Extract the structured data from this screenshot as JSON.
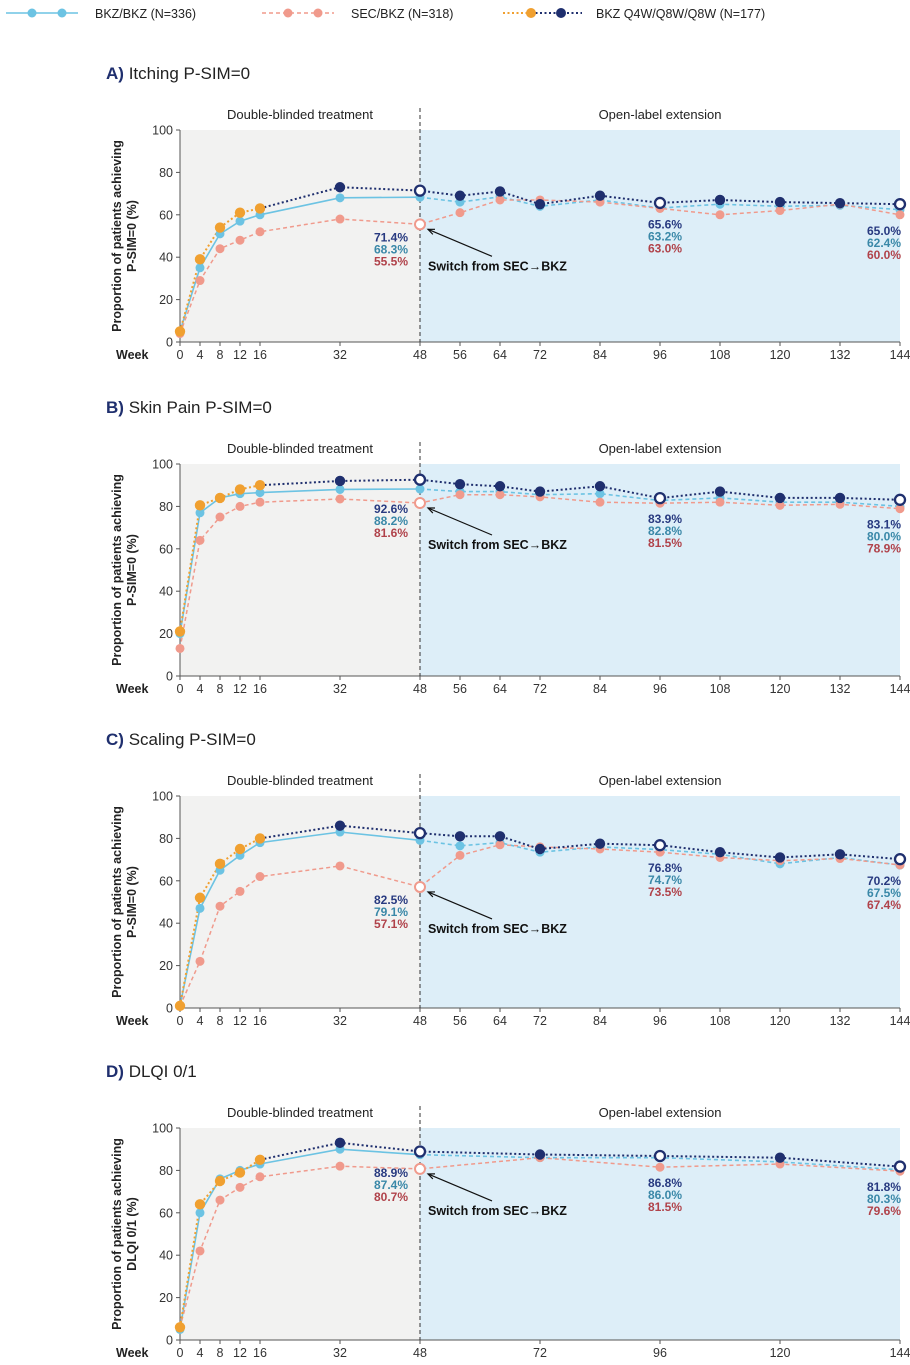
{
  "colors": {
    "bkz_bkz": "#6cc3e3",
    "sec_bkz": "#f09a8c",
    "bkz_q4w_dot": "#f0a030",
    "bkz_q4w_line": "#1f2f6e",
    "label_navy": "#283a80",
    "label_teal": "#3a88a8",
    "label_red": "#b0424a",
    "double_blind_bg": "#f2f2f1",
    "open_label_bg": "#ddeef8"
  },
  "legend": {
    "bkz_bkz": "BKZ/BKZ (N=336)",
    "sec_bkz": "SEC/BKZ (N=318)",
    "bkz_q4w": "BKZ Q4W/Q8W/Q8W (N=177)"
  },
  "common": {
    "phase_left": "Double-blinded treatment",
    "phase_right": "Open-label extension",
    "switch_note": "Switch from SEC→BKZ",
    "week_label": "Week"
  },
  "chart_data": [
    {
      "type": "line",
      "letter": "A)",
      "title": "Itching P-SIM=0",
      "ylabel_1": "Proportion of patients achieving",
      "ylabel_2": "P-SIM=0 (%)",
      "ylim": [
        0,
        100
      ],
      "yticks": [
        0,
        20,
        40,
        60,
        80,
        100
      ],
      "xticks": [
        0,
        4,
        8,
        12,
        16,
        32,
        48,
        56,
        64,
        72,
        84,
        96,
        108,
        120,
        132,
        144
      ],
      "series": [
        {
          "name": "BKZ/BKZ (N=336)",
          "x": [
            0,
            4,
            8,
            12,
            16,
            32,
            48,
            56,
            64,
            72,
            84,
            96,
            108,
            120,
            132,
            144
          ],
          "values": [
            5,
            35,
            51,
            57,
            60,
            68,
            68.3,
            66,
            68.5,
            64,
            67,
            63.2,
            65,
            64,
            64.5,
            62.4
          ]
        },
        {
          "name": "SEC/BKZ (N=318)",
          "x": [
            0,
            4,
            8,
            12,
            16,
            32,
            48,
            56,
            64,
            72,
            84,
            96,
            108,
            120,
            132,
            144
          ],
          "values": [
            4,
            29,
            44,
            48,
            52,
            58,
            55.5,
            61,
            67,
            67,
            66,
            63,
            60,
            62,
            65,
            60
          ]
        },
        {
          "name": "BKZ Q4W/Q8W/Q8W (N=177)",
          "x": [
            0,
            4,
            8,
            12,
            16,
            32,
            48,
            56,
            64,
            72,
            84,
            96,
            108,
            120,
            132,
            144
          ],
          "values": [
            5,
            39,
            54,
            61,
            63,
            73,
            71.4,
            69,
            71,
            65,
            69,
            65.6,
            67,
            66,
            65.5,
            65
          ]
        }
      ],
      "annotations": [
        {
          "x": 48,
          "values": [
            "71.4%",
            "68.3%",
            "55.5%"
          ]
        },
        {
          "x": 96,
          "values": [
            "65.6%",
            "63.2%",
            "63.0%"
          ]
        },
        {
          "x": 144,
          "values": [
            "65.0%",
            "62.4%",
            "60.0%"
          ]
        }
      ]
    },
    {
      "type": "line",
      "letter": "B)",
      "title": "Skin Pain P-SIM=0",
      "ylabel_1": "Proportion of patients achieving",
      "ylabel_2": "P-SIM=0 (%)",
      "ylim": [
        0,
        100
      ],
      "yticks": [
        0,
        20,
        40,
        60,
        80,
        100
      ],
      "xticks": [
        0,
        4,
        8,
        12,
        16,
        32,
        48,
        56,
        64,
        72,
        84,
        96,
        108,
        120,
        132,
        144
      ],
      "series": [
        {
          "name": "BKZ/BKZ (N=336)",
          "x": [
            0,
            4,
            8,
            12,
            16,
            32,
            48,
            56,
            64,
            72,
            84,
            96,
            108,
            120,
            132,
            144
          ],
          "values": [
            20,
            77,
            84,
            86,
            86.5,
            88,
            88.2,
            87,
            87,
            85.5,
            86,
            82.8,
            84,
            82,
            82,
            80
          ]
        },
        {
          "name": "SEC/BKZ (N=318)",
          "x": [
            0,
            4,
            8,
            12,
            16,
            32,
            48,
            56,
            64,
            72,
            84,
            96,
            108,
            120,
            132,
            144
          ],
          "values": [
            13,
            64,
            75,
            80,
            82,
            83.5,
            81.6,
            85.5,
            85.5,
            84.5,
            82,
            81.5,
            82,
            80.5,
            81,
            78.9
          ]
        },
        {
          "name": "BKZ Q4W/Q8W/Q8W (N=177)",
          "x": [
            0,
            4,
            8,
            12,
            16,
            32,
            48,
            56,
            64,
            72,
            84,
            96,
            108,
            120,
            132,
            144
          ],
          "values": [
            21,
            80.5,
            84,
            88,
            90,
            92,
            92.6,
            90.5,
            89.5,
            87,
            89.5,
            83.9,
            87,
            84,
            84,
            83.1
          ]
        }
      ],
      "annotations": [
        {
          "x": 48,
          "values": [
            "92.6%",
            "88.2%",
            "81.6%"
          ]
        },
        {
          "x": 96,
          "values": [
            "83.9%",
            "82.8%",
            "81.5%"
          ]
        },
        {
          "x": 144,
          "values": [
            "83.1%",
            "80.0%",
            "78.9%"
          ]
        }
      ]
    },
    {
      "type": "line",
      "letter": "C)",
      "title": "Scaling P-SIM=0",
      "ylabel_1": "Proportion of patients achieving",
      "ylabel_2": "P-SIM=0 (%)",
      "ylim": [
        0,
        100
      ],
      "yticks": [
        0,
        20,
        40,
        60,
        80,
        100
      ],
      "xticks": [
        0,
        4,
        8,
        12,
        16,
        32,
        48,
        56,
        64,
        72,
        84,
        96,
        108,
        120,
        132,
        144
      ],
      "series": [
        {
          "name": "BKZ/BKZ (N=336)",
          "x": [
            0,
            4,
            8,
            12,
            16,
            32,
            48,
            56,
            64,
            72,
            84,
            96,
            108,
            120,
            132,
            144
          ],
          "values": [
            1,
            47,
            65,
            72,
            78,
            83,
            79.1,
            76.5,
            78,
            73.5,
            76,
            74.7,
            72.5,
            68,
            71,
            67.4
          ]
        },
        {
          "name": "SEC/BKZ (N=318)",
          "x": [
            0,
            4,
            8,
            12,
            16,
            32,
            48,
            56,
            64,
            72,
            84,
            96,
            108,
            120,
            132,
            144
          ],
          "values": [
            1,
            22,
            48,
            55,
            62,
            67,
            57.1,
            72,
            77,
            76,
            75,
            73.5,
            71,
            69.5,
            70.5,
            67.5
          ]
        },
        {
          "name": "BKZ Q4W/Q8W/Q8W (N=177)",
          "x": [
            0,
            4,
            8,
            12,
            16,
            32,
            48,
            56,
            64,
            72,
            84,
            96,
            108,
            120,
            132,
            144
          ],
          "values": [
            1,
            52,
            68,
            75,
            80,
            86,
            82.5,
            81,
            81,
            75,
            77.5,
            76.8,
            73.5,
            71,
            72.5,
            70.2
          ]
        }
      ],
      "annotations": [
        {
          "x": 48,
          "values": [
            "82.5%",
            "79.1%",
            "57.1%"
          ]
        },
        {
          "x": 96,
          "values": [
            "76.8%",
            "74.7%",
            "73.5%"
          ]
        },
        {
          "x": 144,
          "values": [
            "70.2%",
            "67.5%",
            "67.4%"
          ]
        }
      ]
    },
    {
      "type": "line",
      "letter": "D)",
      "title": "DLQI 0/1",
      "ylabel_1": "Proportion of patients achieving",
      "ylabel_2": "DLQI 0/1 (%)",
      "ylim": [
        0,
        100
      ],
      "yticks": [
        0,
        20,
        40,
        60,
        80,
        100
      ],
      "xticks": [
        0,
        4,
        8,
        12,
        16,
        32,
        48,
        72,
        96,
        120,
        144
      ],
      "series": [
        {
          "name": "BKZ/BKZ (N=336)",
          "x": [
            0,
            4,
            8,
            12,
            16,
            32,
            48,
            72,
            96,
            120,
            144
          ],
          "values": [
            5,
            60,
            76,
            80,
            83,
            90,
            87.4,
            86,
            86,
            84,
            80.3
          ]
        },
        {
          "name": "SEC/BKZ (N=318)",
          "x": [
            0,
            4,
            8,
            12,
            16,
            32,
            48,
            72,
            96,
            120,
            144
          ],
          "values": [
            6,
            42,
            66,
            72,
            77,
            82,
            80.7,
            86,
            81.5,
            83,
            79.6
          ]
        },
        {
          "name": "BKZ Q4W/Q8W/Q8W (N=177)",
          "x": [
            0,
            4,
            8,
            12,
            16,
            32,
            48,
            72,
            96,
            120,
            144
          ],
          "values": [
            6,
            64,
            75,
            79,
            85,
            93,
            88.9,
            87.5,
            86.8,
            86,
            81.8
          ]
        }
      ],
      "annotations": [
        {
          "x": 48,
          "values": [
            "88.9%",
            "87.4%",
            "80.7%"
          ]
        },
        {
          "x": 96,
          "values": [
            "86.8%",
            "86.0%",
            "81.5%"
          ]
        },
        {
          "x": 144,
          "values": [
            "81.8%",
            "80.3%",
            "79.6%"
          ]
        }
      ]
    }
  ]
}
